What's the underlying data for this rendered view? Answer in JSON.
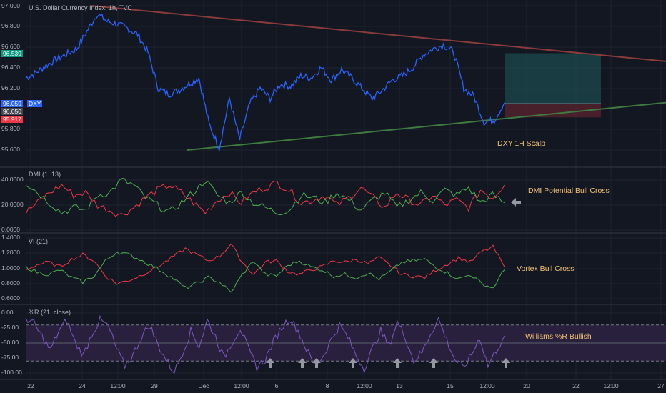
{
  "colors": {
    "background": "#131722",
    "text": "#b2b5be",
    "grid": "#1f2330",
    "pane_divider": "#2a2e39",
    "price_line": "#2962ff",
    "upper_trendline": "#8b3a3a",
    "lower_trendline": "#3f7a3f",
    "target_zone": "#1e5b5b",
    "stop_zone": "#5b2430",
    "di_plus": "#4caf50",
    "di_minus": "#f23645",
    "williams": "#7e57c2",
    "williams_band": "#2b2140",
    "annotation": "#f0c070",
    "arrow": "#9598a1",
    "badge_high": "#089981",
    "badge_symbol": "#2962ff",
    "badge_mid": "#434651",
    "badge_low": "#f23645"
  },
  "header": {
    "title": "U.S. Dollar Currency Index, 1h, TVC"
  },
  "price_pane": {
    "symbol_badge": "DXY",
    "annotation": "DXY 1H Scalp",
    "y_ticks": [
      "97.000",
      "96.800",
      "96.600",
      "96.400",
      "96.200",
      "95.800",
      "95.600"
    ],
    "badges": {
      "high": "96.539",
      "last": "96.059",
      "mid": "96.050",
      "low": "95.917"
    }
  },
  "dmi_pane": {
    "title": "DMI (1, 13)",
    "annotation": "DMI Potential Bull Cross",
    "arrow_icon": "arrow-left-icon",
    "y_ticks": [
      "40.0000",
      "20.0000",
      "0.0000"
    ]
  },
  "vi_pane": {
    "title": "VI (21)",
    "annotation": "Vortex Bull Cross",
    "y_ticks": [
      "1.4000",
      "1.2000",
      "1.0000",
      "0.8000",
      "0.6000"
    ]
  },
  "wr_pane": {
    "title": "%R (21, close)",
    "annotation": "Williams %R Bullish",
    "arrow_icon": "arrow-up-icon",
    "arrow_count": 7,
    "y_ticks": [
      "0.00",
      "-25.00",
      "-50.00",
      "-75.00",
      "-100.00"
    ]
  },
  "x_axis": {
    "ticks": [
      "22",
      "24",
      "12:00",
      "29",
      "Dec",
      "12:00",
      "6",
      "8",
      "12:00",
      "13",
      "15",
      "12:00",
      "20",
      "22",
      "12:00",
      "27"
    ]
  },
  "chart_data": [
    {
      "type": "line",
      "title": "U.S. Dollar Currency Index, 1h, TVC",
      "series": [
        {
          "name": "DXY",
          "values": [
            96.3,
            96.35,
            96.42,
            96.48,
            96.53,
            96.58,
            96.75,
            96.92,
            96.85,
            96.82,
            96.78,
            96.72,
            96.55,
            96.2,
            96.14,
            96.18,
            96.24,
            96.3,
            95.85,
            95.62,
            96.1,
            95.7,
            96.05,
            96.2,
            96.1,
            96.24,
            96.22,
            96.32,
            96.3,
            96.4,
            96.28,
            96.38,
            96.3,
            96.2,
            96.1,
            96.18,
            96.28,
            96.32,
            96.4,
            96.52,
            96.58,
            96.62,
            96.55,
            96.2,
            96.12,
            95.87,
            95.89,
            96.06
          ]
        }
      ],
      "ylim": [
        95.5,
        97.05
      ],
      "annotations": [
        "DXY 1H Scalp"
      ],
      "trendlines": [
        {
          "name": "resistance",
          "from": [
            96.92,
            97.0
          ],
          "to": [
            96.48,
            96.5
          ]
        },
        {
          "name": "support",
          "from": [
            95.62,
            95.6
          ],
          "to": [
            96.02,
            96.04
          ]
        }
      ],
      "position_tool": {
        "entry": 96.05,
        "target": 96.539,
        "stop": 95.917
      }
    },
    {
      "type": "line",
      "title": "DMI (1, 13)",
      "series": [
        {
          "name": "+DI",
          "values": [
            38,
            30,
            22,
            14,
            18,
            16,
            28,
            30,
            40,
            36,
            26,
            20,
            14,
            22,
            30,
            40,
            28,
            22,
            30,
            22,
            18,
            14,
            16,
            28,
            26,
            22,
            30,
            24,
            16,
            24,
            30,
            18,
            24,
            30,
            24,
            32,
            28,
            34,
            22,
            28,
            22
          ]
        },
        {
          "name": "-DI",
          "values": [
            14,
            22,
            30,
            36,
            28,
            30,
            20,
            16,
            12,
            18,
            26,
            32,
            36,
            30,
            22,
            14,
            24,
            30,
            22,
            30,
            34,
            38,
            32,
            22,
            24,
            28,
            20,
            26,
            34,
            26,
            18,
            30,
            24,
            20,
            28,
            20,
            24,
            18,
            32,
            26,
            36
          ]
        }
      ],
      "ylim": [
        0,
        45
      ],
      "annotations": [
        "DMI Potential Bull Cross"
      ]
    },
    {
      "type": "line",
      "title": "VI (21)",
      "series": [
        {
          "name": "VI+",
          "values": [
            1.02,
            0.95,
            0.92,
            0.98,
            0.88,
            0.82,
            0.9,
            1.1,
            1.22,
            1.18,
            1.12,
            1.04,
            0.96,
            0.86,
            0.74,
            0.8,
            0.88,
            0.82,
            0.68,
            0.92,
            1.1,
            0.92,
            0.9,
            1.04,
            1.1,
            1.02,
            0.98,
            0.9,
            0.92,
            0.88,
            0.94,
            0.86,
            0.96,
            1.08,
            1.1,
            1.12,
            1.02,
            0.94,
            0.86,
            0.92,
            0.8,
            0.74,
            0.98
          ]
        },
        {
          "name": "VI-",
          "values": [
            0.98,
            1.05,
            1.08,
            1.02,
            1.12,
            1.18,
            1.1,
            0.9,
            0.8,
            0.84,
            0.9,
            0.98,
            1.06,
            1.16,
            1.26,
            1.18,
            1.1,
            1.16,
            1.32,
            1.08,
            0.92,
            1.08,
            1.1,
            0.96,
            0.92,
            0.98,
            1.02,
            1.1,
            1.08,
            1.12,
            1.06,
            1.14,
            1.04,
            0.92,
            0.9,
            0.88,
            0.98,
            1.06,
            1.14,
            1.08,
            1.22,
            1.28,
            1.02
          ]
        }
      ],
      "ylim": [
        0.55,
        1.45
      ],
      "annotations": [
        "Vortex Bull Cross"
      ]
    },
    {
      "type": "line",
      "title": "%R (21, close)",
      "series": [
        {
          "name": "%R",
          "values": [
            -8,
            -18,
            -40,
            -62,
            -30,
            -12,
            -50,
            -70,
            -35,
            -12,
            -22,
            -60,
            -88,
            -70,
            -40,
            -20,
            -52,
            -78,
            -100,
            -65,
            -30,
            -55,
            -12,
            -40,
            -75,
            -48,
            -25,
            -62,
            -90,
            -78,
            -48,
            -24,
            -8,
            -30,
            -60,
            -88,
            -72,
            -45,
            -20,
            -40,
            -70,
            -92,
            -60,
            -30,
            -55,
            -15,
            -40,
            -80,
            -66,
            -35,
            -10,
            -45,
            -78,
            -92,
            -70,
            -40,
            -88,
            -62,
            -38
          ]
        }
      ],
      "ylim": [
        -105,
        5
      ],
      "bands": [
        -20,
        -80
      ],
      "annotations": [
        "Williams %R Bullish"
      ]
    }
  ]
}
